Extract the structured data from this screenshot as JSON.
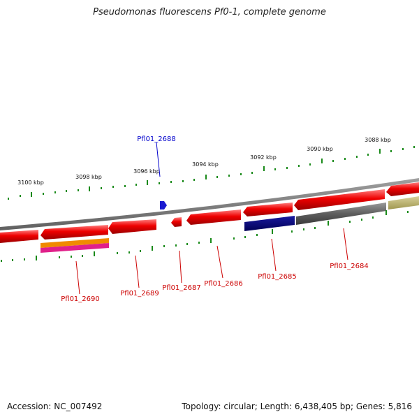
{
  "title": "Pseudomonas fluorescens Pf0-1, complete genome",
  "footer": {
    "accession": "Accession: NC_007492",
    "info": "Topology: circular; Length: 6,438,405 bp; Genes: 5,816"
  },
  "colors": {
    "tick": "#1a8a1a",
    "backbone": "#808080",
    "gene_red": "#ee0000",
    "label_red": "#cc0000",
    "label_blue": "#0000cc",
    "navy": "#000080",
    "gray_gene": "#5e5e5e",
    "khaki": "#b8b070",
    "orange": "#f08a00",
    "pink": "#e0208a"
  },
  "ticks": {
    "outer_labels": [
      "3100 kbp",
      "3098 kbp",
      "3096 kbp",
      "3094 kbp",
      "3092 kbp",
      "3090 kbp",
      "3088 kbp"
    ]
  },
  "genes": {
    "highlight_label": "Pfl01_2688",
    "labels": [
      "Pfl01_2690",
      "Pfl01_2689",
      "Pfl01_2687",
      "Pfl01_2686",
      "Pfl01_2685",
      "Pfl01_2684"
    ]
  }
}
